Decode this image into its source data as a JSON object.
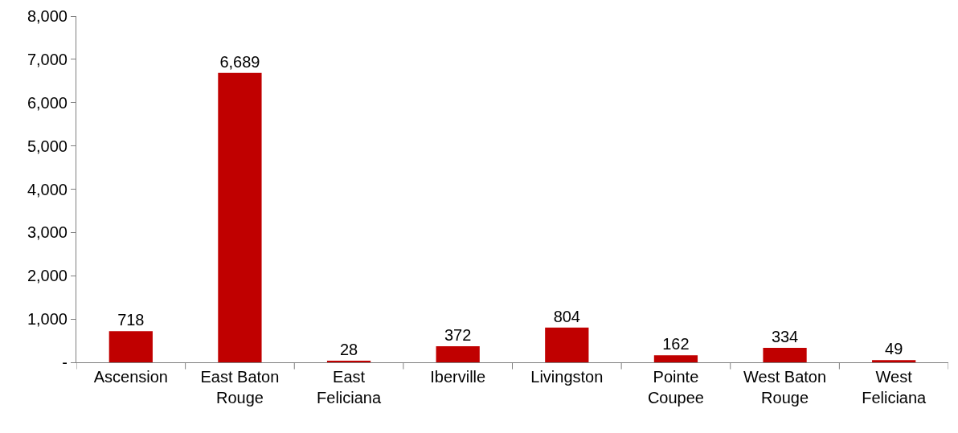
{
  "chart_data": {
    "type": "bar",
    "categories": [
      "Ascension",
      "East Baton Rouge",
      "East Feliciana",
      "Iberville",
      "Livingston",
      "Pointe Coupee",
      "West Baton Rouge",
      "West Feliciana"
    ],
    "values": [
      718,
      6689,
      28,
      372,
      804,
      162,
      334,
      49
    ],
    "color": "#c00000",
    "ylim": [
      0,
      8000
    ],
    "yticks": [
      {
        "value": 0,
        "label": "-"
      },
      {
        "value": 1000,
        "label": "1,000"
      },
      {
        "value": 2000,
        "label": "2,000"
      },
      {
        "value": 3000,
        "label": "3,000"
      },
      {
        "value": 4000,
        "label": "4,000"
      },
      {
        "value": 5000,
        "label": "5,000"
      },
      {
        "value": 6000,
        "label": "6,000"
      },
      {
        "value": 7000,
        "label": "7,000"
      },
      {
        "value": 8000,
        "label": "8,000"
      }
    ],
    "value_labels": [
      "718",
      "6,689",
      "28",
      "372",
      "804",
      "162",
      "334",
      "49"
    ],
    "grid": false
  }
}
